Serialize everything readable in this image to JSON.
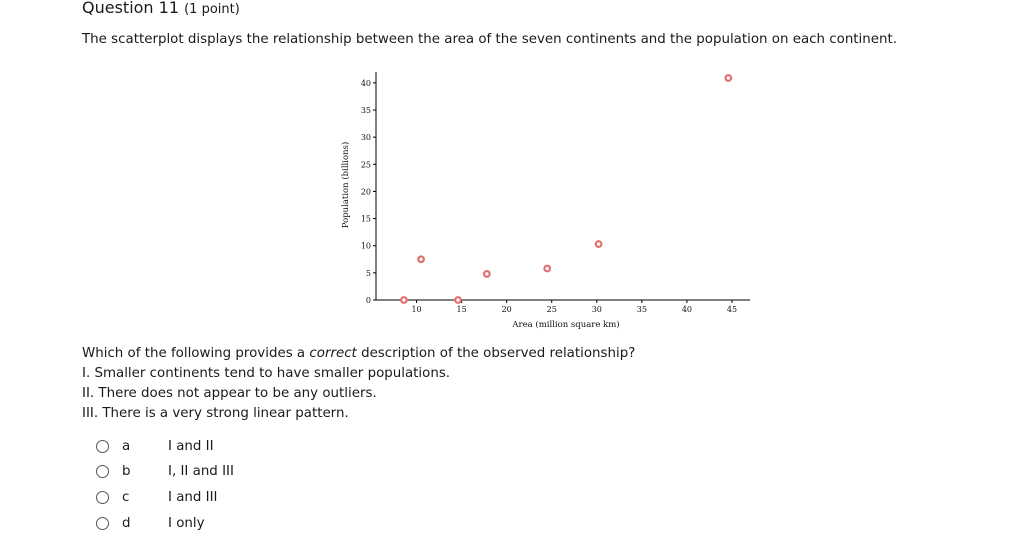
{
  "question": {
    "title": "Question 11",
    "points": "(1 point)",
    "prompt": "The scatterplot displays the relationship between the area of the seven continents and the population on each continent.",
    "which_prefix": "Which of the following provides a ",
    "which_em": "correct",
    "which_suffix": " description of the observed relationship?",
    "statements": [
      "I. Smaller continents tend to have smaller populations.",
      "II. There does not appear to be any outliers.",
      "III. There is a very strong linear pattern."
    ]
  },
  "options": [
    {
      "letter": "a",
      "text": "I and II"
    },
    {
      "letter": "b",
      "text": "I, II and III"
    },
    {
      "letter": "c",
      "text": "I and III"
    },
    {
      "letter": "d",
      "text": "I only"
    }
  ],
  "colors": {
    "point_stroke": "#e07070"
  },
  "chart_data": {
    "type": "scatter",
    "xlabel": "Area (million square km)",
    "ylabel": "Population (billions)",
    "xlim": [
      5.5,
      47
    ],
    "ylim": [
      0,
      42
    ],
    "x_ticks": [
      10,
      15,
      20,
      25,
      30,
      35,
      40,
      45
    ],
    "y_ticks": [
      0,
      5,
      10,
      15,
      20,
      25,
      30,
      35,
      40
    ],
    "grid": false,
    "points": [
      {
        "x": 8.6,
        "y": 0.0
      },
      {
        "x": 10.5,
        "y": 7.5
      },
      {
        "x": 14.6,
        "y": 0.0
      },
      {
        "x": 17.8,
        "y": 4.8
      },
      {
        "x": 24.5,
        "y": 5.8
      },
      {
        "x": 30.2,
        "y": 10.3
      },
      {
        "x": 44.6,
        "y": 40.9
      }
    ]
  }
}
